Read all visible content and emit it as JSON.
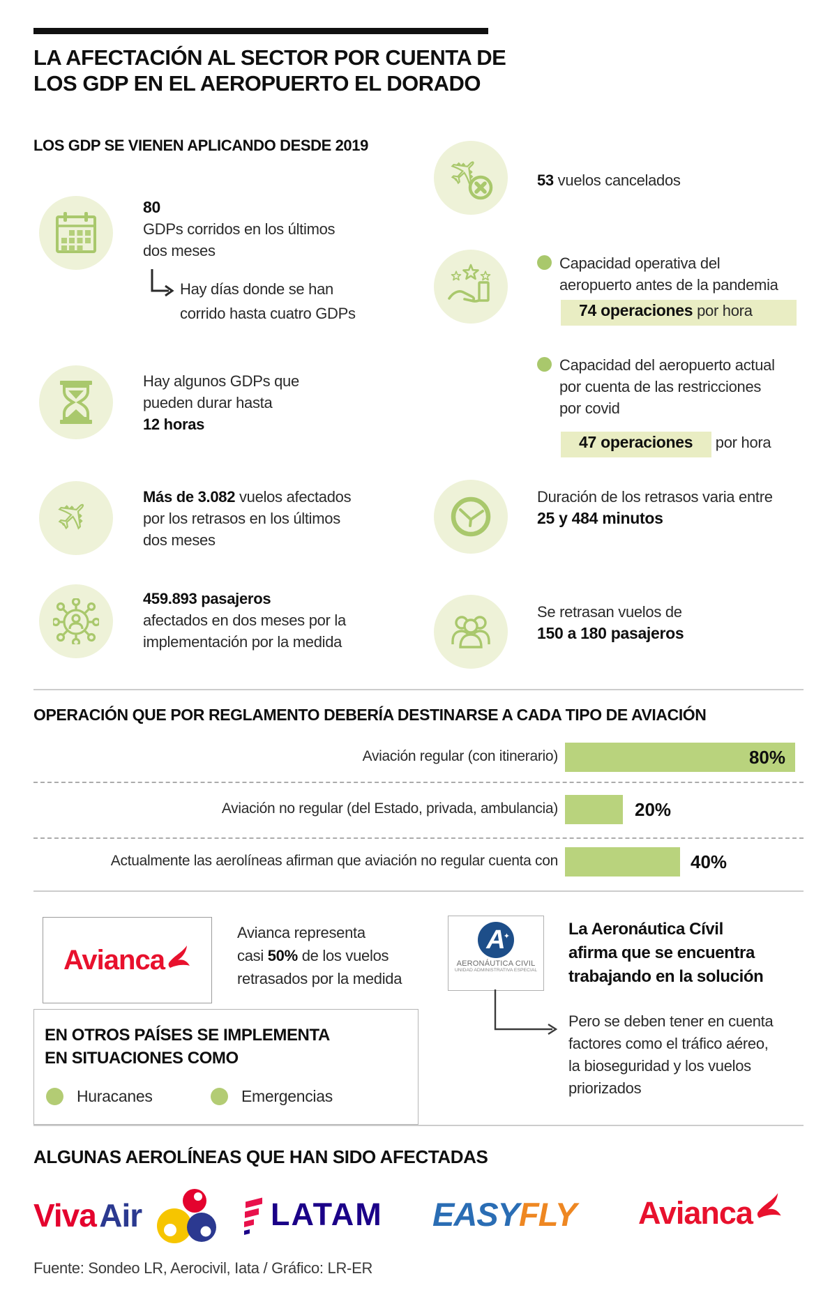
{
  "header": {
    "title1": "LA AFECTACIÓN AL SECTOR POR CUENTA DE",
    "title2": "LOS GDP EN EL AEROPUERTO EL DORADO"
  },
  "intro": {
    "label": "LOS GDP SE VIENEN APLICANDO DESDE 2019"
  },
  "stats": {
    "gdps": {
      "value": "80",
      "l1": "GDPs corridos en los últimos",
      "l2": "dos meses",
      "n1": "Hay días donde se han",
      "n2": "corrido hasta cuatro GDPs"
    },
    "duration": {
      "l1": "Hay algunos GDPs que",
      "l2": "pueden durar hasta",
      "b": "12 horas"
    },
    "flights": {
      "b": "Más de 3.082",
      "r1": " vuelos afectados",
      "l2": "por los retrasos en los últimos",
      "l3": "dos meses"
    },
    "pax": {
      "b": "459.893 pasajeros",
      "l2": "afectados en dos meses por la",
      "l3": "implementación por la medida"
    },
    "cancelled": {
      "b": "53",
      "r": " vuelos cancelados"
    },
    "cap_before": {
      "l1": "Capacidad operativa del",
      "l2": "aeropuerto antes de la pandemia",
      "hb": "74 operaciones",
      "hr": " por hora"
    },
    "cap_now": {
      "l1": "Capacidad del aeropuerto actual",
      "l2": "por cuenta de las restricciones",
      "l3": "por covid",
      "hb": "47 operaciones",
      "after": " por hora"
    },
    "delay_minutes": {
      "l1": "Duración de los retrasos varia entre",
      "b": "25 y 484 minutos"
    },
    "delayed_flights": {
      "l1": "Se retrasan vuelos de",
      "b": "150 a 180 pasajeros"
    }
  },
  "chart_data": {
    "type": "bar",
    "orientation": "horizontal",
    "title": "OPERACIÓN QUE POR REGLAMENTO DEBERÍA DESTINARSE A CADA TIPO DE AVIACIÓN",
    "categories": [
      "Aviación regular (con itinerario)",
      "Aviación no regular (del Estado, privada, ambulancia)",
      "Actualmente las aerolíneas afirman que aviación no regular cuenta con"
    ],
    "values": [
      80,
      20,
      40
    ],
    "labels": [
      "80%",
      "20%",
      "40%"
    ],
    "label_position": [
      "inside",
      "outside",
      "outside"
    ],
    "xlim": [
      0,
      100
    ],
    "grid": false,
    "bar_color": "#b9d37d",
    "separator_style": "dashed"
  },
  "avianca": {
    "wordmark": "Avianca",
    "l1": "Avianca representa",
    "l2a": "casi ",
    "l2b": "50%",
    "l2c": " de los vuelos",
    "l3": "retrasados por la medida"
  },
  "aerocivil": {
    "letter": "A",
    "name": "AERONÁUTICA CIVIL",
    "sub": "UNIDAD ADMINISTRATIVA ESPECIAL",
    "b1": "La Aeronáutica Cívil",
    "b2": "afirma que se encuentra",
    "b3": "trabajando en la solución",
    "n1": "Pero se deben tener en cuenta",
    "n2": "factores como el tráfico aéreo,",
    "n3": "la bioseguridad y los vuelos",
    "n4": "priorizados"
  },
  "other_countries": {
    "t1": "EN OTROS PAÍSES SE IMPLEMENTA",
    "t2": "EN SITUACIONES COMO",
    "i1": "Huracanes",
    "i2": "Emergencias"
  },
  "airlines": {
    "title": "ALGUNAS AEROLÍNEAS QUE HAN SIDO AFECTADAS",
    "viva1": "Viva",
    "viva2": "Air",
    "latam": "LATAM",
    "easy1": "EASY",
    "easy2": "FLY",
    "avianca": "Avianca"
  },
  "footer": {
    "source": "Fuente: Sondeo LR, Aerocivil, Iata / Gráfico: LR-ER"
  },
  "colors": {
    "icon_green": "#a9c86c",
    "icon_circle_fill": "#eef2d8",
    "highlight": "#e9edc3",
    "bar_green": "#b9d37d",
    "avianca_red": "#e8112d",
    "latam_indigo": "#1b0088",
    "latam_coral": "#e8114b",
    "viva_red": "#e4032e",
    "viva_blue": "#2b3990",
    "easyfly_blue": "#2a6db4",
    "easyfly_orange": "#ee8722",
    "aerocivil_blue": "#1d4e89"
  }
}
